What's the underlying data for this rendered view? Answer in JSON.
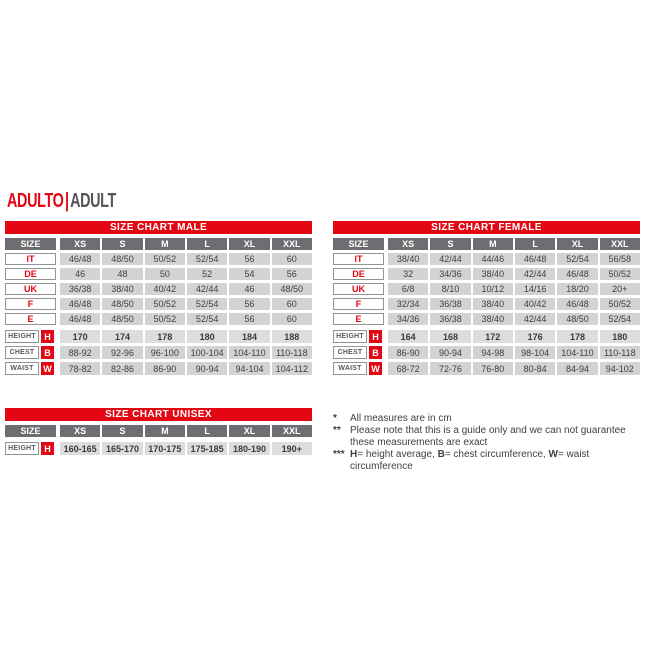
{
  "heading": {
    "primary": "ADULTO",
    "separator": "|",
    "secondary": "ADULT"
  },
  "colors": {
    "accent_red": "#e30613",
    "header_gray": "#6d6e71",
    "cell_gray": "#d1d3d4",
    "text_dark": "#414042"
  },
  "tables": {
    "male": {
      "title": "SIZE CHART MALE",
      "size_label": "SIZE",
      "columns": [
        "XS",
        "S",
        "M",
        "L",
        "XL",
        "XXL"
      ],
      "size_rows": [
        {
          "label": "IT",
          "values": [
            "46/48",
            "48/50",
            "50/52",
            "52/54",
            "56",
            "60"
          ]
        },
        {
          "label": "DE",
          "values": [
            "46",
            "48",
            "50",
            "52",
            "54",
            "56"
          ]
        },
        {
          "label": "UK",
          "values": [
            "36/38",
            "38/40",
            "40/42",
            "42/44",
            "46",
            "48/50"
          ]
        },
        {
          "label": "F",
          "values": [
            "46/48",
            "48/50",
            "50/52",
            "52/54",
            "56",
            "60"
          ]
        },
        {
          "label": "E",
          "values": [
            "46/48",
            "48/50",
            "50/52",
            "52/54",
            "56",
            "60"
          ]
        }
      ],
      "measure_rows": [
        {
          "label": "HEIGHT",
          "letter": "H",
          "bold": true,
          "values": [
            "170",
            "174",
            "178",
            "180",
            "184",
            "188"
          ]
        },
        {
          "label": "CHEST",
          "letter": "B",
          "bold": false,
          "values": [
            "88-92",
            "92-96",
            "96-100",
            "100-104",
            "104-110",
            "110-118"
          ]
        },
        {
          "label": "WAIST",
          "letter": "W",
          "bold": false,
          "values": [
            "78-82",
            "82-86",
            "86-90",
            "90-94",
            "94-104",
            "104-112"
          ]
        }
      ]
    },
    "female": {
      "title": "SIZE CHART FEMALE",
      "size_label": "SIZE",
      "columns": [
        "XS",
        "S",
        "M",
        "L",
        "XL",
        "XXL"
      ],
      "size_rows": [
        {
          "label": "IT",
          "values": [
            "38/40",
            "42/44",
            "44/46",
            "46/48",
            "52/54",
            "56/58"
          ]
        },
        {
          "label": "DE",
          "values": [
            "32",
            "34/36",
            "38/40",
            "42/44",
            "46/48",
            "50/52"
          ]
        },
        {
          "label": "UK",
          "values": [
            "6/8",
            "8/10",
            "10/12",
            "14/16",
            "18/20",
            "20+"
          ]
        },
        {
          "label": "F",
          "values": [
            "32/34",
            "36/38",
            "38/40",
            "40/42",
            "46/48",
            "50/52"
          ]
        },
        {
          "label": "E",
          "values": [
            "34/36",
            "36/38",
            "38/40",
            "42/44",
            "48/50",
            "52/54"
          ]
        }
      ],
      "measure_rows": [
        {
          "label": "HEIGHT",
          "letter": "H",
          "bold": true,
          "values": [
            "164",
            "168",
            "172",
            "176",
            "178",
            "180"
          ]
        },
        {
          "label": "CHEST",
          "letter": "B",
          "bold": false,
          "values": [
            "86-90",
            "90-94",
            "94-98",
            "98-104",
            "104-110",
            "110-118"
          ]
        },
        {
          "label": "WAIST",
          "letter": "W",
          "bold": false,
          "values": [
            "68-72",
            "72-76",
            "76-80",
            "80-84",
            "84-94",
            "94-102"
          ]
        }
      ]
    },
    "unisex": {
      "title": "SIZE CHART UNISEX",
      "size_label": "SIZE",
      "columns": [
        "XS",
        "S",
        "M",
        "L",
        "XL",
        "XXL"
      ],
      "size_rows": [],
      "measure_rows": [
        {
          "label": "HEIGHT",
          "letter": "H",
          "bold": true,
          "values": [
            "160-165",
            "165-170",
            "170-175",
            "175-185",
            "180-190",
            "190+"
          ]
        }
      ]
    }
  },
  "footnotes": {
    "note1": {
      "marker": "*",
      "text": "All measures are in cm"
    },
    "note2": {
      "marker": "**",
      "line1": "Please note that this is a guide only and we can not guarantee",
      "line2": "these measurements are exact"
    },
    "note3": {
      "marker": "***",
      "b1": "H",
      "t1": "= height average, ",
      "b2": "B",
      "t2": "= chest circumference, ",
      "b3": "W",
      "t3": "= waist circumference"
    }
  }
}
